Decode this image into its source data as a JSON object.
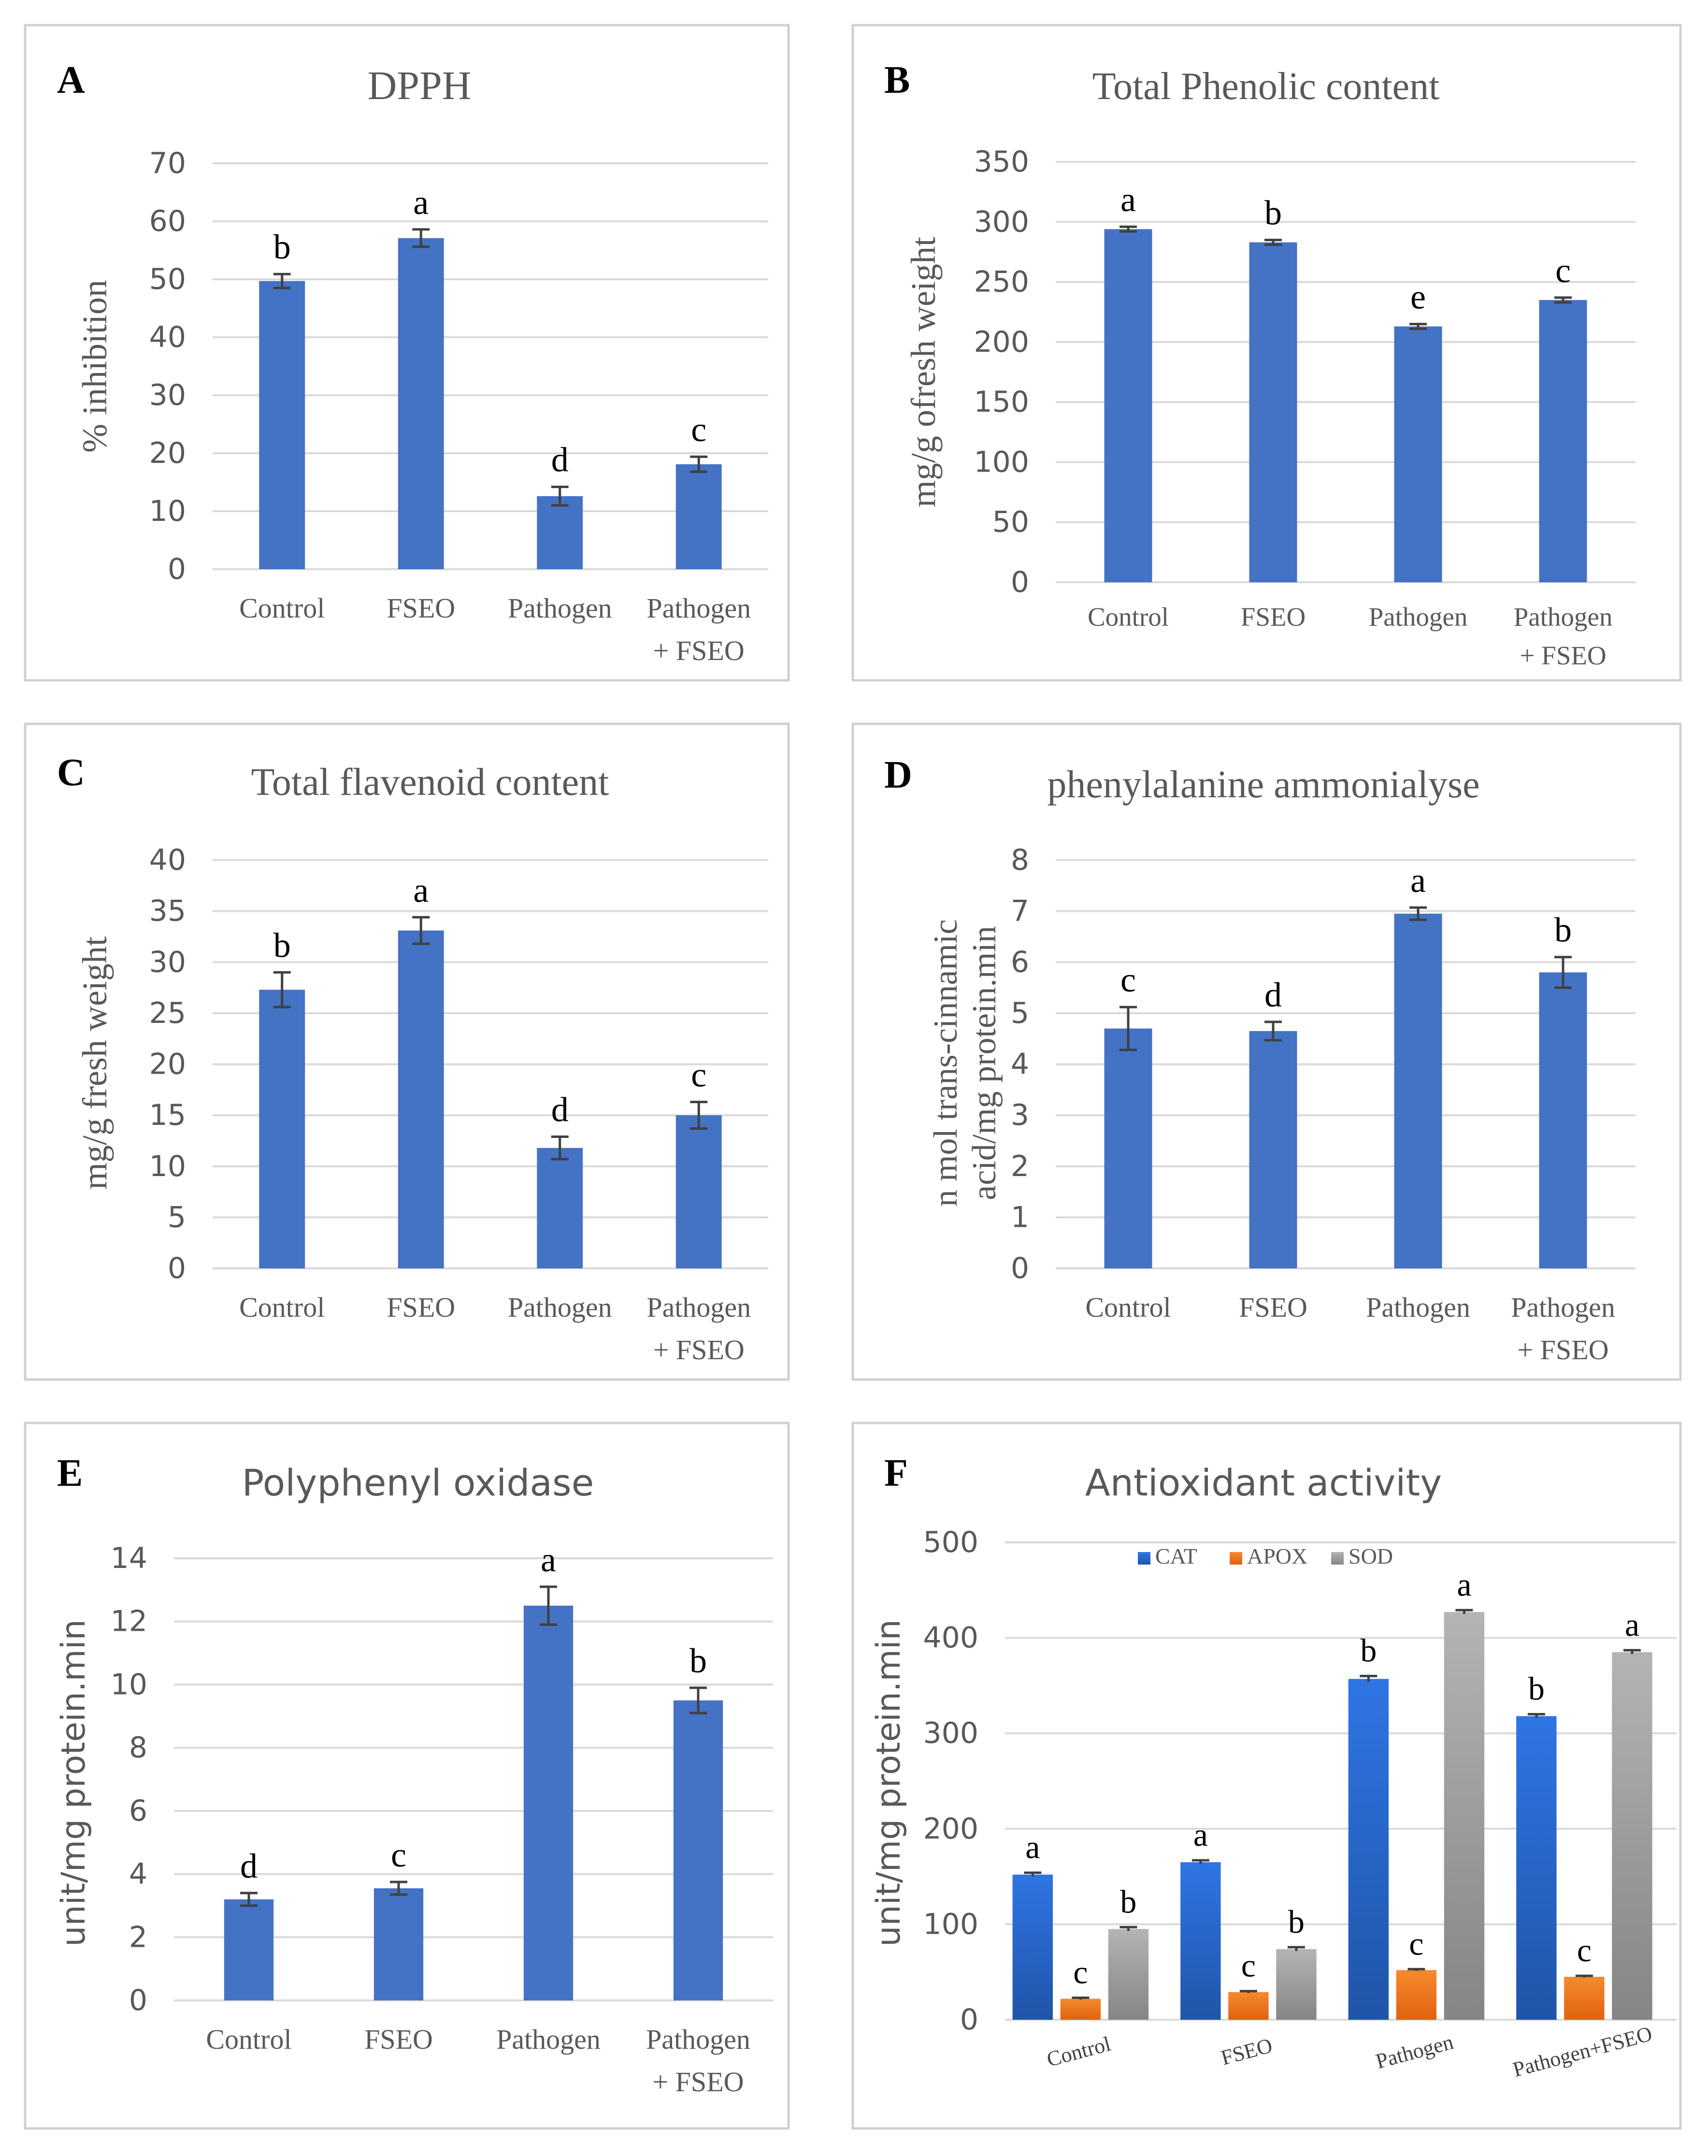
{
  "colors": {
    "bar": "#4472C4",
    "cat": "#2E6FD8",
    "apox": "#F07824",
    "sod": "#A3A3A3",
    "grid": "#D9D9D9",
    "axis_text": "#595959",
    "frame": "#D0D0D0",
    "error_bar": "#404040"
  },
  "chart_data": [
    {
      "panel": "A",
      "type": "bar",
      "title": "DPPH",
      "ylabel": "% inhibition",
      "categories": [
        "Control",
        "FSEO",
        "Pathogen",
        "Pathogen + FSEO"
      ],
      "values": [
        49.7,
        57.1,
        12.6,
        18.1
      ],
      "errors": [
        1.2,
        1.5,
        1.6,
        1.3
      ],
      "letters": [
        "b",
        "a",
        "d",
        "c"
      ],
      "ylim": [
        0,
        70
      ],
      "yticks": [
        0,
        10,
        20,
        30,
        40,
        50,
        60,
        70
      ]
    },
    {
      "panel": "B",
      "type": "bar",
      "title": "Total Phenolic content",
      "ylabel": "mg/g ofresh weight",
      "categories": [
        "Control",
        "FSEO",
        "Pathogen",
        "Pathogen + FSEO"
      ],
      "values": [
        294,
        283,
        213,
        235
      ],
      "errors": [
        2,
        2,
        2,
        2
      ],
      "letters": [
        "a",
        "b",
        "e",
        "c"
      ],
      "ylim": [
        0,
        350
      ],
      "yticks": [
        0,
        50,
        100,
        150,
        200,
        250,
        300,
        350
      ]
    },
    {
      "panel": "C",
      "type": "bar",
      "title": "Total flavenoid content",
      "ylabel": "mg/g fresh weight",
      "categories": [
        "Control",
        "FSEO",
        "Pathogen",
        "Pathogen + FSEO"
      ],
      "values": [
        27.3,
        33.1,
        11.8,
        15.0
      ],
      "errors": [
        1.7,
        1.3,
        1.1,
        1.3
      ],
      "letters": [
        "b",
        "a",
        "d",
        "c"
      ],
      "ylim": [
        0,
        40
      ],
      "yticks": [
        0,
        5,
        10,
        15,
        20,
        25,
        30,
        35,
        40
      ]
    },
    {
      "panel": "D",
      "type": "bar",
      "title": "phenylalanine ammonialyse",
      "ylabel_lines": [
        "n mol trans-cinnamic",
        "acid/mg protein.min"
      ],
      "categories": [
        "Control",
        "FSEO",
        "Pathogen",
        "Pathogen + FSEO"
      ],
      "values": [
        4.7,
        4.65,
        6.95,
        5.8
      ],
      "errors": [
        0.42,
        0.18,
        0.12,
        0.3
      ],
      "letters": [
        "c",
        "d",
        "a",
        "b"
      ],
      "ylim": [
        0,
        8
      ],
      "yticks": [
        0,
        1,
        2,
        3,
        4,
        5,
        6,
        7,
        8
      ]
    },
    {
      "panel": "E",
      "type": "bar",
      "title": "Polyphenyl oxidase",
      "ylabel": "unit/mg protein.min",
      "categories": [
        "Control",
        "FSEO",
        "Pathogen",
        "Pathogen + FSEO"
      ],
      "values": [
        3.2,
        3.55,
        12.5,
        9.5
      ],
      "errors": [
        0.2,
        0.2,
        0.6,
        0.4
      ],
      "letters": [
        "d",
        "c",
        "a",
        "b"
      ],
      "ylim": [
        0,
        14
      ],
      "yticks": [
        0,
        2,
        4,
        6,
        8,
        10,
        12,
        14
      ]
    },
    {
      "panel": "F",
      "type": "bar",
      "title": "Antioxidant activity",
      "ylabel": "unit/mg protein.min",
      "categories": [
        "Control",
        "FSEO",
        "Pathogen",
        "Pathogen+FSEO"
      ],
      "series": [
        {
          "name": "CAT",
          "values": [
            152,
            165,
            357,
            318
          ],
          "errors": [
            2,
            2,
            3,
            2
          ],
          "letters": [
            "a",
            "a",
            "b",
            "b"
          ]
        },
        {
          "name": "APOX",
          "values": [
            22,
            29,
            52,
            45
          ],
          "errors": [
            1,
            1,
            1,
            1
          ],
          "letters": [
            "c",
            "c",
            "c",
            "c"
          ]
        },
        {
          "name": "SOD",
          "values": [
            95,
            74,
            427,
            385
          ],
          "errors": [
            2,
            2,
            2,
            2
          ],
          "letters": [
            "b",
            "b",
            "a",
            "a"
          ]
        }
      ],
      "legend_position": "top",
      "ylim": [
        0,
        500
      ],
      "yticks": [
        0,
        100,
        200,
        300,
        400,
        500
      ]
    }
  ]
}
